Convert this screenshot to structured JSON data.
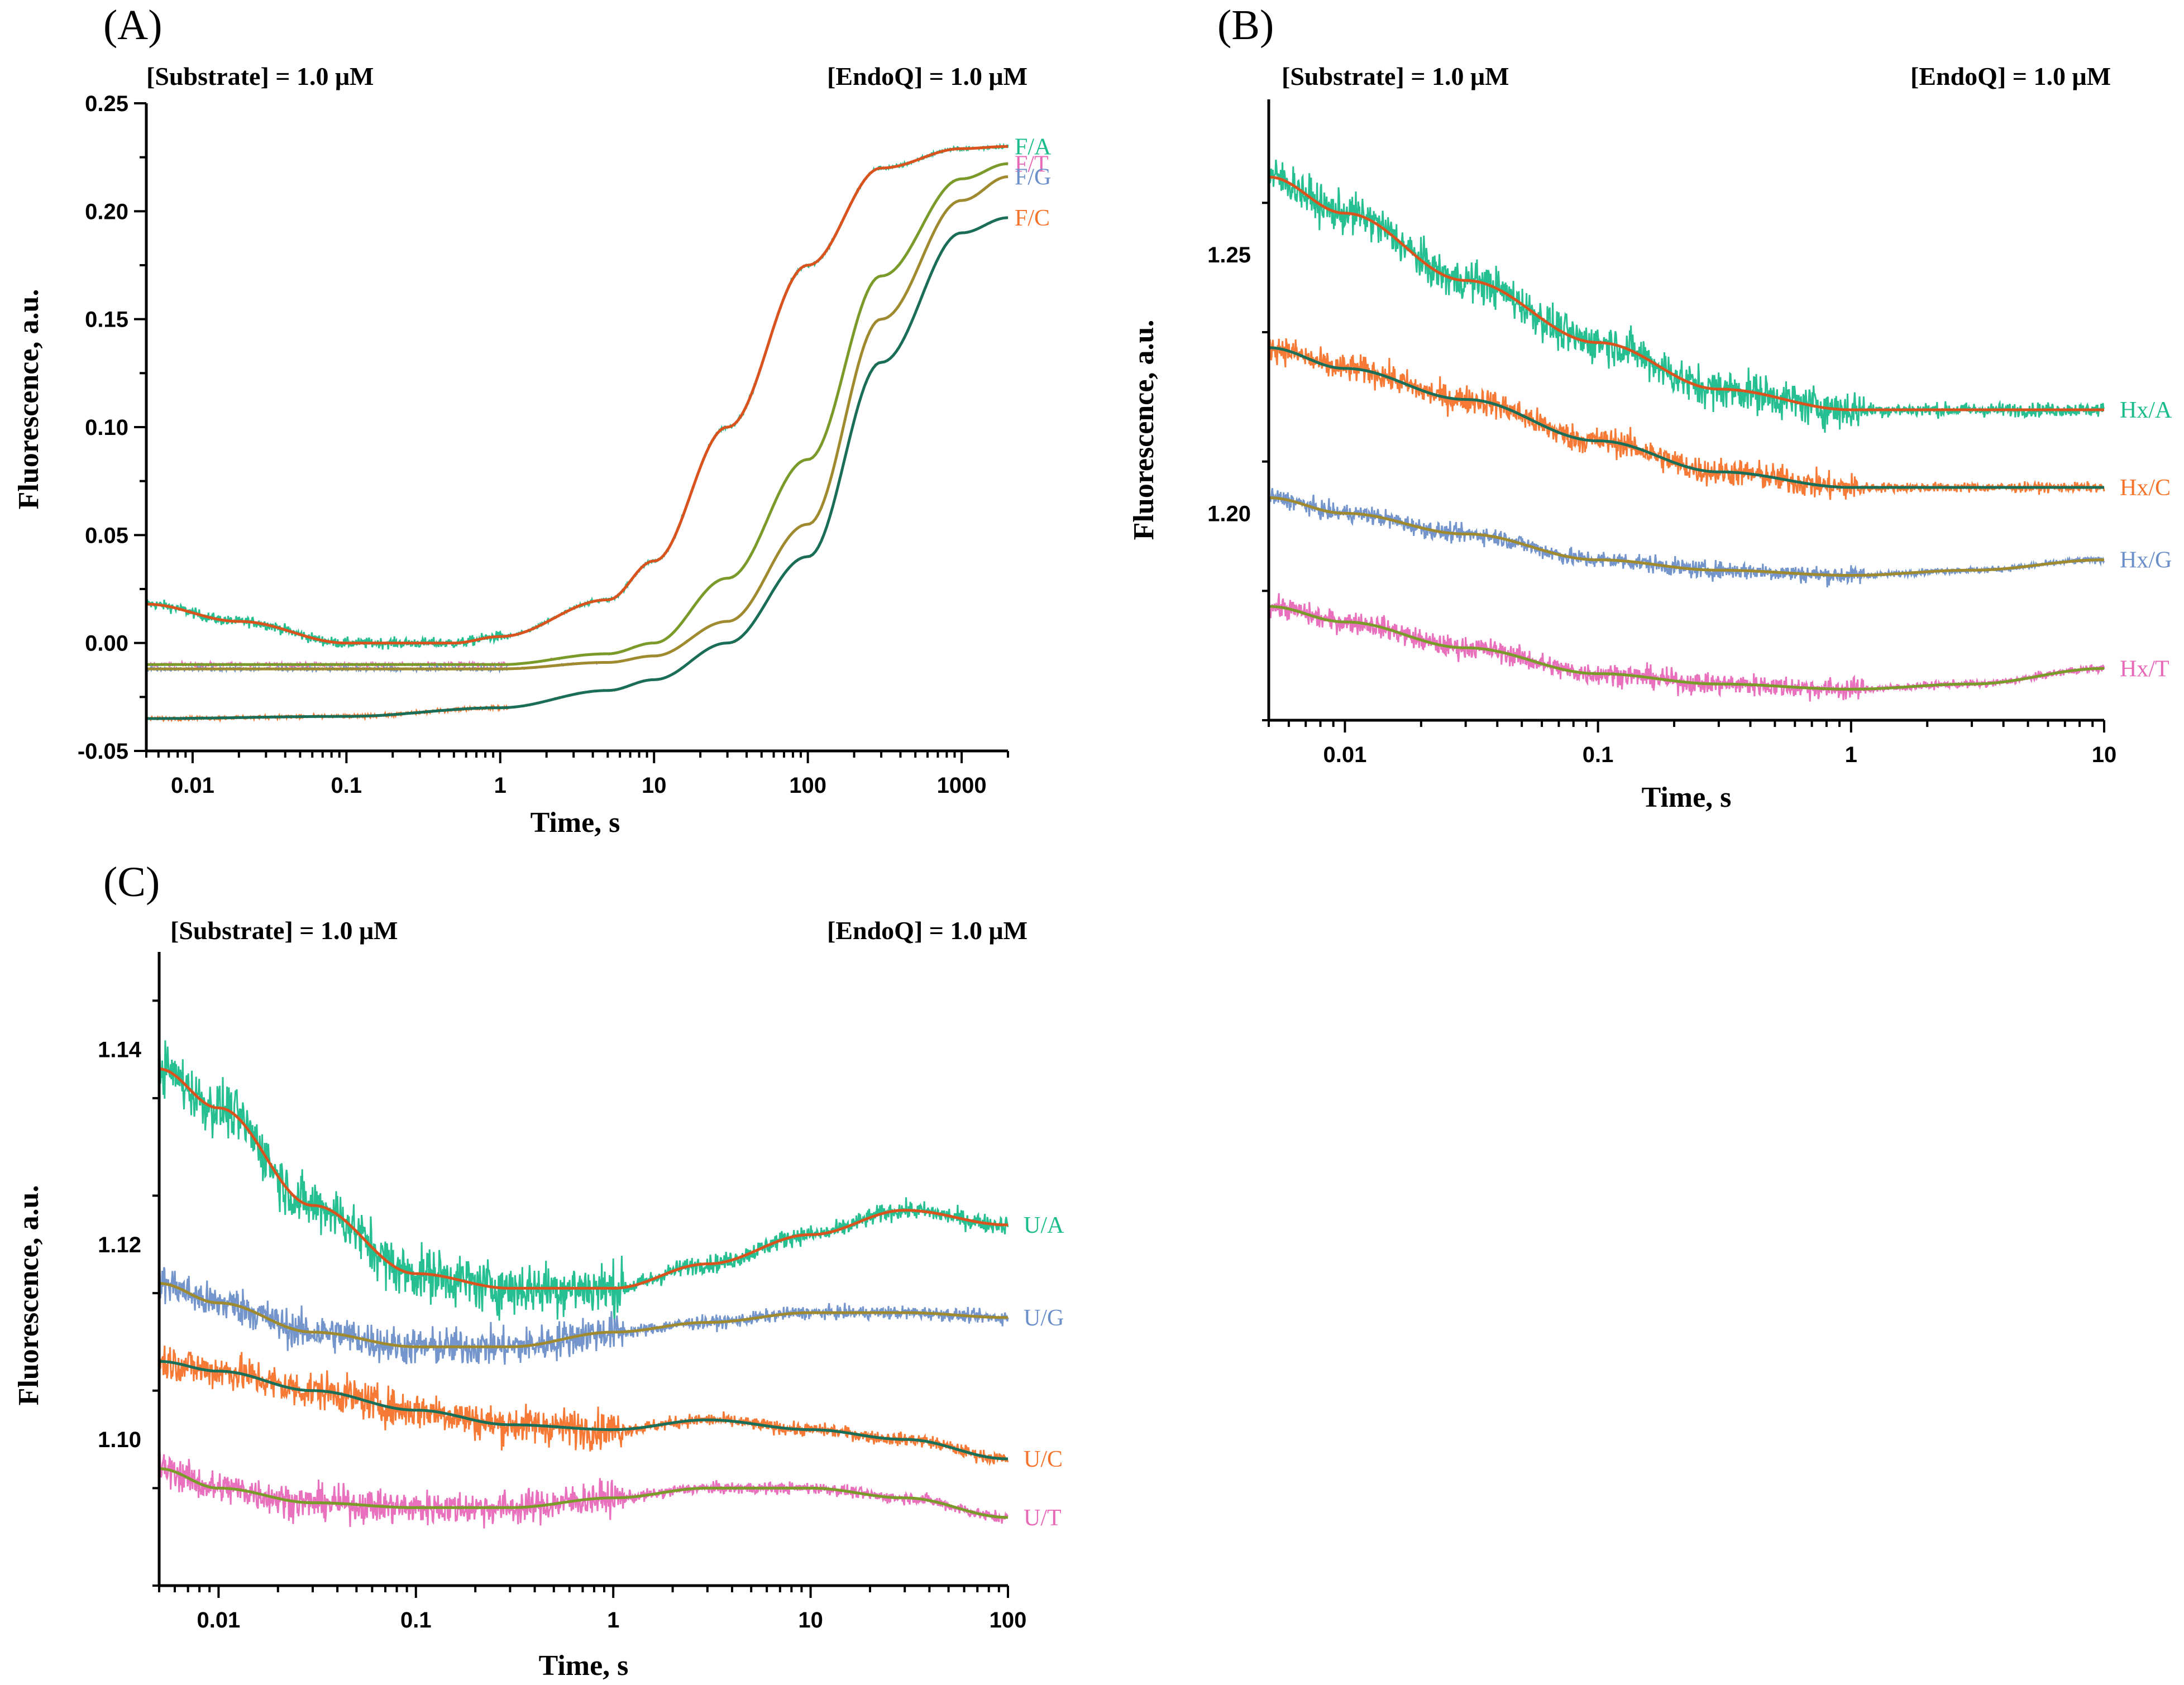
{
  "figure": {
    "panels": [
      "(A)",
      "(B)",
      "(C)"
    ]
  },
  "chart_data": [
    {
      "id": "A",
      "type": "line",
      "label": "(A)",
      "title_left": "[Substrate] = 1.0 μM",
      "title_right": "[EndoQ] = 1.0 μM",
      "xlabel": "Time, s",
      "ylabel": "Fluorescence, a.u.",
      "xscale": "log",
      "xlim": [
        0.005,
        2000
      ],
      "ylim": [
        -0.05,
        0.25
      ],
      "xticks": [
        0.01,
        0.1,
        1,
        10,
        100,
        1000
      ],
      "xtick_labels": [
        "0.01",
        "0.1",
        "1",
        "10",
        "100",
        "1000"
      ],
      "yticks": [
        -0.05,
        0.0,
        0.05,
        0.1,
        0.15,
        0.2,
        0.25
      ],
      "ytick_labels": [
        "-0.05",
        "0.00",
        "0.05",
        "0.10",
        "0.15",
        "0.20",
        "0.25"
      ],
      "series": [
        {
          "name": "F/A",
          "color": "#1abc8c",
          "fit_color": "#d9531e",
          "noise": 0.0025,
          "x": [
            0.005,
            0.02,
            0.1,
            0.5,
            1,
            5,
            10,
            30,
            100,
            300,
            1000,
            2000
          ],
          "values": [
            0.018,
            0.01,
            0.0,
            0.0,
            0.003,
            0.02,
            0.038,
            0.1,
            0.175,
            0.22,
            0.229,
            0.23
          ]
        },
        {
          "name": "F/T",
          "color": "#e868b8",
          "fit_color": "#7a9a2a",
          "noise": 0.0008,
          "x": [
            0.005,
            0.1,
            1,
            5,
            10,
            30,
            100,
            300,
            1000,
            2000
          ],
          "values": [
            -0.01,
            -0.01,
            -0.01,
            -0.005,
            0.0,
            0.03,
            0.085,
            0.17,
            0.215,
            0.222
          ]
        },
        {
          "name": "F/G",
          "color": "#6b8fc9",
          "fit_color": "#a08a30",
          "noise": 0.0008,
          "x": [
            0.005,
            0.1,
            1,
            5,
            10,
            30,
            100,
            300,
            1000,
            2000
          ],
          "values": [
            -0.012,
            -0.012,
            -0.012,
            -0.009,
            -0.006,
            0.01,
            0.055,
            0.15,
            0.205,
            0.216
          ]
        },
        {
          "name": "F/C",
          "color": "#f5732a",
          "fit_color": "#1a6e58",
          "noise": 0.0008,
          "x": [
            0.005,
            0.1,
            1,
            5,
            10,
            30,
            100,
            300,
            1000,
            2000
          ],
          "values": [
            -0.035,
            -0.034,
            -0.03,
            -0.022,
            -0.017,
            0.0,
            0.04,
            0.13,
            0.19,
            0.197
          ]
        }
      ],
      "legend_position": "right-end"
    },
    {
      "id": "B",
      "type": "line",
      "label": "(B)",
      "title_left": "[Substrate] = 1.0 μM",
      "title_right": "[EndoQ] = 1.0 μM",
      "xlabel": "Time, s",
      "ylabel": "Fluorescence, a.u.",
      "xscale": "log",
      "xlim": [
        0.005,
        10
      ],
      "ylim": [
        1.16,
        1.28
      ],
      "xticks": [
        0.01,
        0.1,
        1,
        10
      ],
      "xtick_labels": [
        "0.01",
        "0.1",
        "1",
        "10"
      ],
      "yticks": [
        1.2,
        1.25
      ],
      "ytick_labels": [
        "1.20",
        "1.25"
      ],
      "series": [
        {
          "name": "Hx/A",
          "color": "#1abc8c",
          "fit_color": "#d9531e",
          "noise": 0.004,
          "x": [
            0.005,
            0.01,
            0.03,
            0.1,
            0.3,
            1,
            3,
            10
          ],
          "values": [
            1.265,
            1.258,
            1.245,
            1.233,
            1.224,
            1.22,
            1.22,
            1.22
          ]
        },
        {
          "name": "Hx/C",
          "color": "#f5732a",
          "fit_color": "#1a6e58",
          "noise": 0.0028,
          "x": [
            0.005,
            0.01,
            0.03,
            0.1,
            0.3,
            1,
            3,
            10
          ],
          "values": [
            1.232,
            1.228,
            1.222,
            1.214,
            1.208,
            1.205,
            1.205,
            1.205
          ]
        },
        {
          "name": "Hx/G",
          "color": "#6b8fc9",
          "fit_color": "#a08a30",
          "noise": 0.0018,
          "x": [
            0.005,
            0.01,
            0.03,
            0.1,
            0.3,
            1,
            3,
            10
          ],
          "values": [
            1.203,
            1.2,
            1.196,
            1.191,
            1.189,
            1.188,
            1.189,
            1.191
          ]
        },
        {
          "name": "Hx/T",
          "color": "#e868b8",
          "fit_color": "#7a9a2a",
          "noise": 0.0022,
          "x": [
            0.005,
            0.01,
            0.03,
            0.1,
            0.3,
            1,
            3,
            10
          ],
          "values": [
            1.182,
            1.179,
            1.174,
            1.169,
            1.167,
            1.166,
            1.167,
            1.17
          ]
        }
      ],
      "legend_position": "right-end"
    },
    {
      "id": "C",
      "type": "line",
      "label": "(C)",
      "title_left": "[Substrate] = 1.0 μM",
      "title_right": "[EndoQ] = 1.0 μM",
      "xlabel": "Time, s",
      "ylabel": "Fluorescence, a.u.",
      "xscale": "log",
      "xlim": [
        0.005,
        100
      ],
      "ylim": [
        1.085,
        1.15
      ],
      "xticks": [
        0.01,
        0.1,
        1,
        10,
        100
      ],
      "xtick_labels": [
        "0.01",
        "0.1",
        "1",
        "10",
        "100"
      ],
      "yticks": [
        1.1,
        1.12,
        1.14
      ],
      "ytick_labels": [
        "1.10",
        "1.12",
        "1.14"
      ],
      "series": [
        {
          "name": "U/A",
          "color": "#1abc8c",
          "fit_color": "#d9531e",
          "noise": 0.0028,
          "x": [
            0.005,
            0.01,
            0.03,
            0.1,
            0.3,
            1,
            3,
            10,
            30,
            100
          ],
          "values": [
            1.138,
            1.134,
            1.124,
            1.117,
            1.1155,
            1.1155,
            1.118,
            1.121,
            1.1235,
            1.122
          ]
        },
        {
          "name": "U/G",
          "color": "#6b8fc9",
          "fit_color": "#a08a30",
          "noise": 0.002,
          "x": [
            0.005,
            0.01,
            0.03,
            0.1,
            0.3,
            1,
            3,
            10,
            30,
            100
          ],
          "values": [
            1.116,
            1.114,
            1.111,
            1.1095,
            1.1095,
            1.111,
            1.112,
            1.113,
            1.113,
            1.1125
          ]
        },
        {
          "name": "U/C",
          "color": "#f5732a",
          "fit_color": "#1a6e58",
          "noise": 0.002,
          "x": [
            0.005,
            0.01,
            0.03,
            0.1,
            0.3,
            1,
            3,
            10,
            30,
            100
          ],
          "values": [
            1.108,
            1.107,
            1.105,
            1.103,
            1.1015,
            1.101,
            1.102,
            1.101,
            1.1,
            1.098
          ]
        },
        {
          "name": "U/T",
          "color": "#e868b8",
          "fit_color": "#7a9a2a",
          "noise": 0.0018,
          "x": [
            0.005,
            0.01,
            0.03,
            0.1,
            0.3,
            1,
            3,
            10,
            30,
            100
          ],
          "values": [
            1.097,
            1.095,
            1.0935,
            1.093,
            1.093,
            1.094,
            1.095,
            1.095,
            1.094,
            1.092
          ]
        }
      ],
      "legend_position": "right-end"
    }
  ]
}
